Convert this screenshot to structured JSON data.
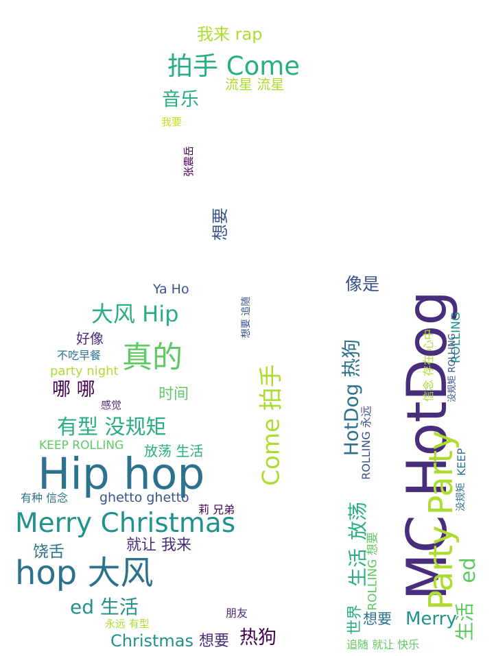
{
  "palette": {
    "purple": "#440154",
    "indigo": "#472d7b",
    "slate": "#3b528b",
    "blue": "#2c728e",
    "teal": "#21918c",
    "green": "#28ae80",
    "lime": "#5ec962",
    "yellow_green": "#addc30",
    "yellow": "#c8e020"
  },
  "words": [
    "我来 rap",
    "拍手 Come",
    "流星 流星",
    "音乐",
    "我要",
    "张震岳",
    "想要",
    "Ya Ho",
    "大风 Hip",
    "好像",
    "不吃早餐",
    "真的",
    "party night",
    "哪 哪",
    "时间",
    "感觉",
    "有型 没规矩",
    "KEEP ROLLING",
    "放荡 生活",
    "Hip hop",
    "有种 信念",
    "ghetto ghetto",
    "莉 兄弟",
    "Merry Christmas",
    "就让 我来",
    "饶舌",
    "hop 大风",
    "ed 生活",
    "朋友",
    "永远 有型",
    "Christmas",
    "想要",
    "热狗",
    "想要 追随",
    "Come 拍手",
    "像是",
    "HotDog 热狗",
    "MC HotDog",
    "信念 存在 心中",
    "ROLLING",
    "ROLLING 永远",
    "没规矩 ROLLING",
    "Party Party",
    "KEEP",
    "没规矩",
    "放荡",
    "生活",
    "ROLLING 想要",
    "世界",
    "想要",
    "Merry",
    "ed",
    "生活",
    "追随 就让 快乐"
  ]
}
